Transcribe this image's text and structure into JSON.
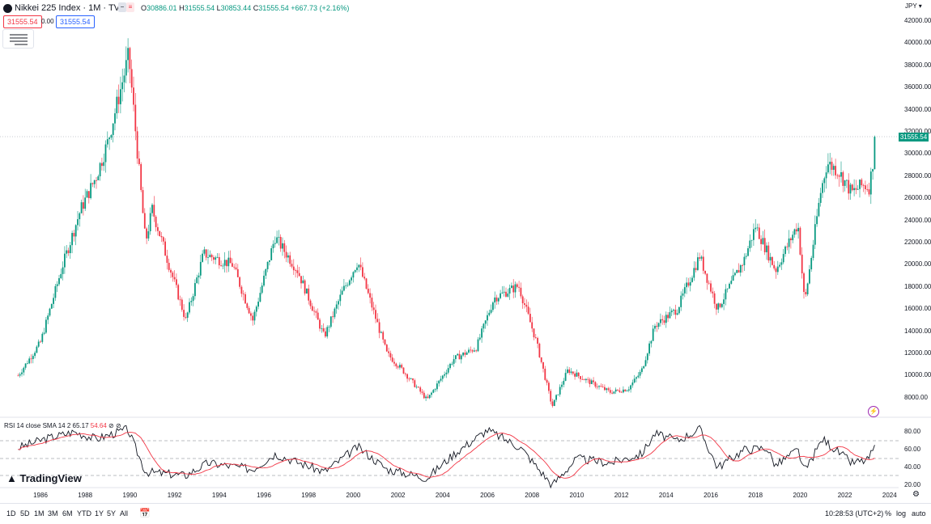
{
  "header": {
    "title": "Nikkei 225 Index · 1M · TVC",
    "ohlc": {
      "o_label": "O",
      "o": "30886.01",
      "h_label": "H",
      "h": "31555.54",
      "l_label": "L",
      "l": "30853.44",
      "c_label": "C",
      "c": "31555.54",
      "change": "+667.73 (+2.16%)"
    },
    "sell_price": "31555.54",
    "spread": "0.00",
    "buy_price": "31555.54",
    "currency": "JPY"
  },
  "price_axis": {
    "labels": [
      "42000.00",
      "40000.00",
      "38000.00",
      "36000.00",
      "34000.00",
      "32000.00",
      "30000.00",
      "28000.00",
      "26000.00",
      "24000.00",
      "22000.00",
      "20000.00",
      "18000.00",
      "16000.00",
      "14000.00",
      "12000.00",
      "10000.00",
      "8000.00"
    ],
    "current_price": "31555.54"
  },
  "rsi_pane": {
    "legend": "RSI 14 close SMA 14 2",
    "rsi_value": "65.17",
    "sma_value": "54.64",
    "axis_labels": [
      "80.00",
      "60.00",
      "40.00",
      "20.00"
    ]
  },
  "time_axis": [
    "1986",
    "1988",
    "1990",
    "1992",
    "1994",
    "1996",
    "1998",
    "2000",
    "2002",
    "2004",
    "2006",
    "2008",
    "2010",
    "2012",
    "2014",
    "2016",
    "2018",
    "2020",
    "2022",
    "2024"
  ],
  "logo": "TradingView",
  "bottom_bar": {
    "timeframes": [
      "1D",
      "5D",
      "1M",
      "3M",
      "6M",
      "YTD",
      "1Y",
      "5Y",
      "All"
    ],
    "clock": "10:28:53 (UTC+2)",
    "percent": "%",
    "log": "log",
    "auto": "auto"
  },
  "colors": {
    "up": "#089981",
    "down": "#f23645",
    "rsi_line": "#131722",
    "sma_line": "#f23645",
    "rsi_band": "#e8f5e9"
  },
  "chart_data": {
    "type": "candlestick",
    "x_unit": "year",
    "ylim": [
      7000,
      43000
    ],
    "keypoints": [
      [
        1985.0,
        10000
      ],
      [
        1986.0,
        13000
      ],
      [
        1987.0,
        20000
      ],
      [
        1987.8,
        25000
      ],
      [
        1988.5,
        28000
      ],
      [
        1989.0,
        31000
      ],
      [
        1989.95,
        38900
      ],
      [
        1990.7,
        22000
      ],
      [
        1991.0,
        25000
      ],
      [
        1992.5,
        15000
      ],
      [
        1993.3,
        21000
      ],
      [
        1994.6,
        20000
      ],
      [
        1995.5,
        15000
      ],
      [
        1996.5,
        22500
      ],
      [
        1997.5,
        19500
      ],
      [
        1998.7,
        13500
      ],
      [
        1999.5,
        17500
      ],
      [
        2000.2,
        20300
      ],
      [
        2001.5,
        12000
      ],
      [
        2002.2,
        10500
      ],
      [
        2003.3,
        7800
      ],
      [
        2004.5,
        11500
      ],
      [
        2005.5,
        12500
      ],
      [
        2006.3,
        17000
      ],
      [
        2007.4,
        18100
      ],
      [
        2008.2,
        13000
      ],
      [
        2008.9,
        7200
      ],
      [
        2009.6,
        10500
      ],
      [
        2010.5,
        9500
      ],
      [
        2011.5,
        8500
      ],
      [
        2012.3,
        8800
      ],
      [
        2012.9,
        10400
      ],
      [
        2013.5,
        14500
      ],
      [
        2014.5,
        16000
      ],
      [
        2015.5,
        20800
      ],
      [
        2016.3,
        16000
      ],
      [
        2017.5,
        20500
      ],
      [
        2018.0,
        23500
      ],
      [
        2018.9,
        19500
      ],
      [
        2019.9,
        23700
      ],
      [
        2020.2,
        16500
      ],
      [
        2020.9,
        26400
      ],
      [
        2021.2,
        29200
      ],
      [
        2021.7,
        28500
      ],
      [
        2022.3,
        26500
      ],
      [
        2022.8,
        27200
      ],
      [
        2023.1,
        27000
      ],
      [
        2023.4,
        31555
      ]
    ],
    "rsi_keypoints": [
      [
        1985.0,
        62
      ],
      [
        1986.2,
        72
      ],
      [
        1987.5,
        80
      ],
      [
        1988.5,
        72
      ],
      [
        1989.9,
        83
      ],
      [
        1990.7,
        35
      ],
      [
        1992.5,
        31
      ],
      [
        1993.5,
        45
      ],
      [
        1995.5,
        38
      ],
      [
        1996.5,
        55
      ],
      [
        1998.7,
        35
      ],
      [
        2000.2,
        63
      ],
      [
        2001.5,
        38
      ],
      [
        2003.3,
        28
      ],
      [
        2004.5,
        55
      ],
      [
        2006.0,
        82
      ],
      [
        2007.5,
        62
      ],
      [
        2008.9,
        20
      ],
      [
        2010.0,
        50
      ],
      [
        2011.5,
        45
      ],
      [
        2012.9,
        55
      ],
      [
        2013.5,
        78
      ],
      [
        2014.5,
        70
      ],
      [
        2015.5,
        83
      ],
      [
        2016.3,
        40
      ],
      [
        2017.5,
        60
      ],
      [
        2018.5,
        62
      ],
      [
        2018.9,
        42
      ],
      [
        2019.9,
        60
      ],
      [
        2020.2,
        35
      ],
      [
        2021.0,
        72
      ],
      [
        2022.3,
        45
      ],
      [
        2023.0,
        48
      ],
      [
        2023.4,
        65.17
      ]
    ],
    "rsi_ylim": [
      10,
      90
    ]
  }
}
